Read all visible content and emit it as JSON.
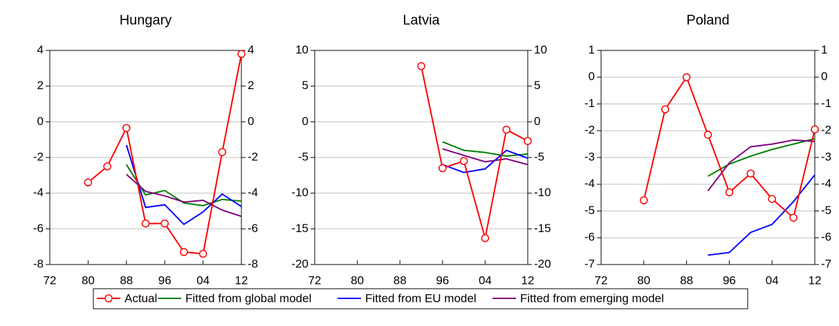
{
  "chart_data": [
    {
      "type": "line",
      "title": "Hungary",
      "grid": true,
      "x": [
        1980,
        1984,
        1988,
        1992,
        1996,
        2000,
        2004,
        2008,
        2012
      ],
      "xlim": [
        1972,
        2012
      ],
      "xticks": [
        {
          "value": 1972,
          "label": "72"
        },
        {
          "value": 1980,
          "label": "80"
        },
        {
          "value": 1988,
          "label": "88"
        },
        {
          "value": 1996,
          "label": "96"
        },
        {
          "value": 2004,
          "label": "04"
        },
        {
          "value": 2012,
          "label": "12"
        }
      ],
      "ylim": [
        -8,
        4
      ],
      "yticks": [
        -8,
        -6,
        -4,
        -2,
        0,
        2,
        4
      ],
      "y2lim": [
        -8,
        4
      ],
      "y2ticks": [
        -8,
        -6,
        -4,
        -2,
        0,
        2,
        4
      ],
      "series": [
        {
          "values": [
            -3.4,
            -2.5,
            -0.35,
            -5.7,
            -5.7,
            -7.3,
            -7.4,
            -1.7,
            3.8
          ]
        },
        {
          "values": [
            null,
            null,
            -2.4,
            -4.1,
            -3.85,
            -4.55,
            -4.7,
            -4.35,
            -4.45
          ]
        },
        {
          "values": [
            null,
            null,
            -1.3,
            -4.8,
            -4.65,
            -5.75,
            -5.05,
            -4.05,
            -4.75
          ]
        },
        {
          "values": [
            null,
            null,
            -2.95,
            -3.9,
            -4.15,
            -4.5,
            -4.4,
            -4.95,
            -5.3
          ]
        }
      ]
    },
    {
      "type": "line",
      "title": "Latvia",
      "grid": true,
      "x": [
        1980,
        1984,
        1988,
        1992,
        1996,
        2000,
        2004,
        2008,
        2012
      ],
      "xlim": [
        1972,
        2012
      ],
      "xticks": [
        {
          "value": 1972,
          "label": "72"
        },
        {
          "value": 1980,
          "label": "80"
        },
        {
          "value": 1988,
          "label": "88"
        },
        {
          "value": 1996,
          "label": "96"
        },
        {
          "value": 2004,
          "label": "04"
        },
        {
          "value": 2012,
          "label": "12"
        }
      ],
      "ylim": [
        -20,
        10
      ],
      "yticks": [
        -20,
        -15,
        -10,
        -5,
        0,
        5,
        10
      ],
      "y2lim": [
        -20,
        10
      ],
      "y2ticks": [
        -20,
        -15,
        -10,
        -5,
        0,
        5,
        10
      ],
      "series": [
        {
          "values": [
            null,
            null,
            null,
            7.8,
            -6.5,
            -5.5,
            -16.3,
            -1.1,
            -2.7
          ]
        },
        {
          "values": [
            null,
            null,
            null,
            null,
            -2.8,
            -4.0,
            -4.3,
            -4.8,
            -4.5
          ]
        },
        {
          "values": [
            null,
            null,
            null,
            null,
            -6.0,
            -7.1,
            -6.6,
            -4.0,
            -5.1
          ]
        },
        {
          "values": [
            null,
            null,
            null,
            null,
            -3.8,
            -4.7,
            -5.6,
            -5.2,
            -6.0
          ]
        }
      ]
    },
    {
      "type": "line",
      "title": "Poland",
      "grid": true,
      "x": [
        1980,
        1984,
        1988,
        1992,
        1996,
        2000,
        2004,
        2008,
        2012
      ],
      "xlim": [
        1972,
        2012
      ],
      "xticks": [
        {
          "value": 1972,
          "label": "72"
        },
        {
          "value": 1980,
          "label": "80"
        },
        {
          "value": 1988,
          "label": "88"
        },
        {
          "value": 1996,
          "label": "96"
        },
        {
          "value": 2004,
          "label": "04"
        },
        {
          "value": 2012,
          "label": "12"
        }
      ],
      "ylim": [
        -7,
        1
      ],
      "yticks": [
        -7,
        -6,
        -5,
        -4,
        -3,
        -2,
        -1,
        0,
        1
      ],
      "y2lim": [
        -7,
        1
      ],
      "y2ticks": [
        -7,
        -6,
        -5,
        -4,
        -3,
        -2,
        -1,
        0,
        1
      ],
      "series": [
        {
          "values": [
            -4.6,
            -1.2,
            0.0,
            -2.15,
            -4.3,
            -3.6,
            -4.55,
            -5.25,
            -1.95
          ]
        },
        {
          "values": [
            null,
            null,
            null,
            -3.7,
            -3.25,
            -2.95,
            -2.7,
            -2.5,
            -2.3
          ]
        },
        {
          "values": [
            null,
            null,
            null,
            -6.65,
            -6.55,
            -5.8,
            -5.5,
            -4.65,
            -3.65
          ]
        },
        {
          "values": [
            null,
            null,
            null,
            -4.25,
            -3.2,
            -2.6,
            -2.5,
            -2.35,
            -2.4
          ]
        }
      ]
    }
  ],
  "legend": [
    {
      "name": "Actual",
      "color": "#ff0000",
      "marker": "circle"
    },
    {
      "name": "Fitted from global model",
      "color": "#008000",
      "marker": "none"
    },
    {
      "name": "Fitted from EU model",
      "color": "#0000ff",
      "marker": "none"
    },
    {
      "name": "Fitted from emerging model",
      "color": "#800080",
      "marker": "none"
    }
  ]
}
